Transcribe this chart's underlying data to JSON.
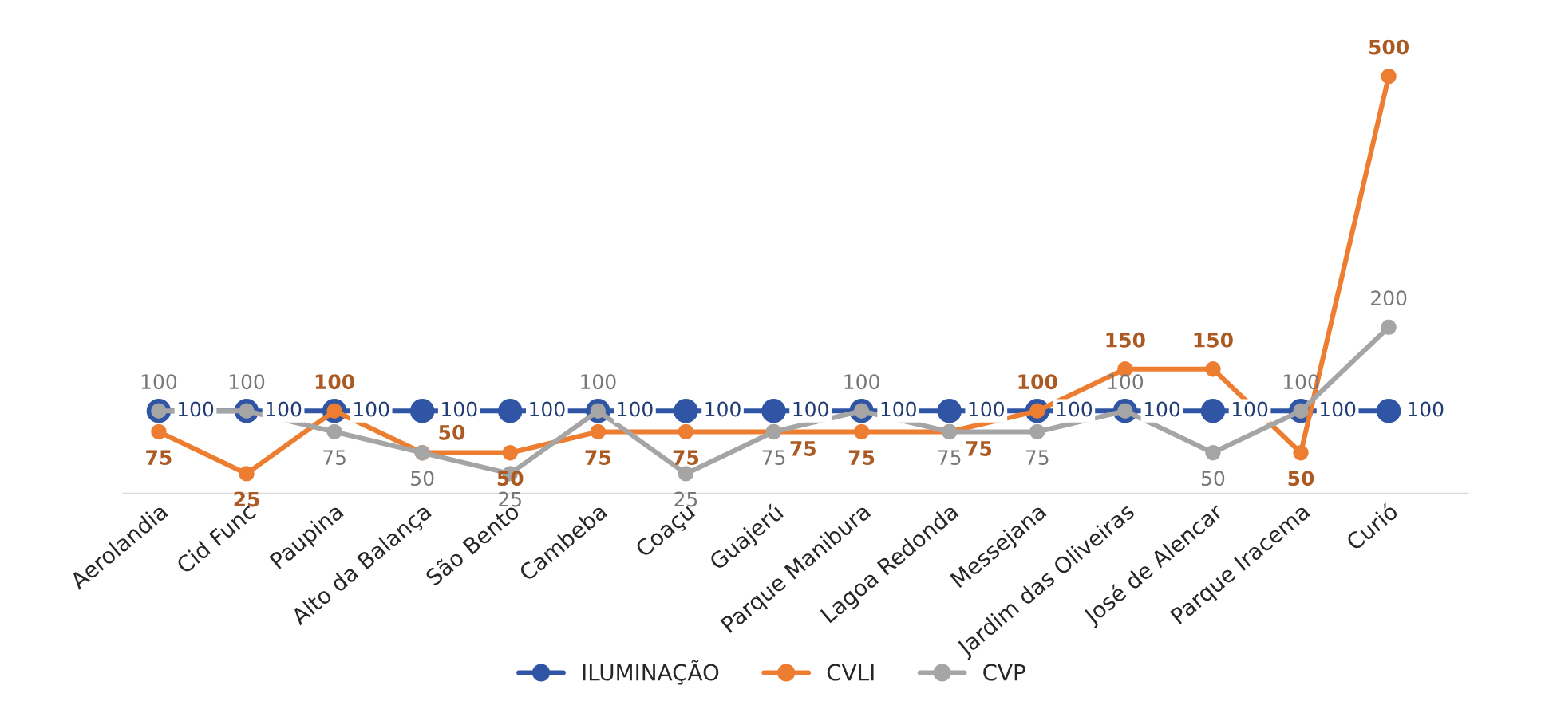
{
  "chart_data": {
    "type": "line",
    "categories": [
      "Aerolandia",
      "Cid Func",
      "Paupina",
      "Alto da Balança",
      "São Bento",
      "Cambeba",
      "Coaçu",
      "Guajerú",
      "Parque Manibura",
      "Lagoa Redonda",
      "Messejana",
      "Jardim das Oliveiras",
      "José de Alencar",
      "Parque Iracema",
      "Curió"
    ],
    "series": [
      {
        "name": "ILUMINAÇÃO",
        "color": "#2f55a4",
        "values": [
          100,
          100,
          100,
          100,
          100,
          100,
          100,
          100,
          100,
          100,
          100,
          100,
          100,
          100,
          100
        ]
      },
      {
        "name": "CVLI",
        "color": "#ed7d31",
        "values": [
          75,
          25,
          100,
          50,
          50,
          75,
          75,
          75,
          75,
          75,
          100,
          150,
          150,
          50,
          500
        ]
      },
      {
        "name": "CVP",
        "color": "#a5a5a5",
        "values": [
          100,
          100,
          75,
          50,
          25,
          100,
          25,
          75,
          100,
          75,
          75,
          100,
          50,
          100,
          200
        ]
      }
    ],
    "data_labels": true,
    "tick_labels": "x",
    "marker": "circle",
    "line_style": "solid",
    "legend": "bottom",
    "grid": false
  }
}
